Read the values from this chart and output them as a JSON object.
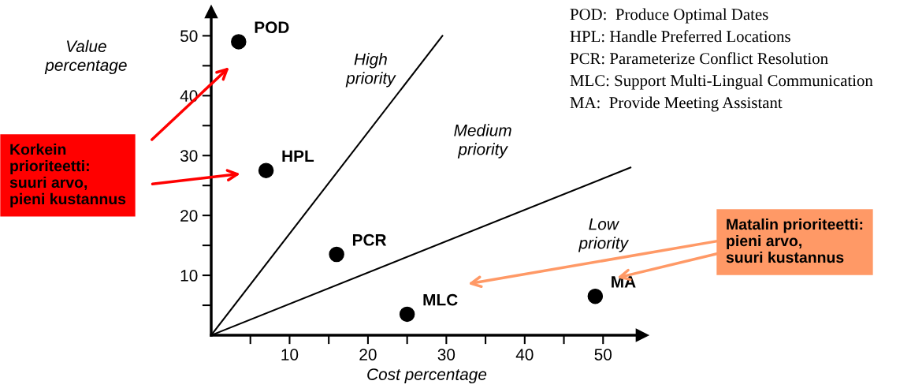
{
  "chart_data": {
    "type": "scatter",
    "xlabel": "Cost percentage",
    "ylabel": "Value percentage",
    "xlim": [
      0,
      55
    ],
    "ylim": [
      0,
      54
    ],
    "xticks": [
      {
        "value": 5,
        "label": null
      },
      10,
      {
        "value": 15,
        "label": null
      },
      20,
      {
        "value": 25,
        "label": null
      },
      30,
      {
        "value": 35,
        "label": null
      },
      40,
      {
        "value": 45,
        "label": null
      },
      50
    ],
    "yticks": [
      {
        "value": 5,
        "label": null
      },
      10,
      {
        "value": 15,
        "label": null
      },
      20,
      {
        "value": 25,
        "label": null
      },
      30,
      {
        "value": 35,
        "label": null
      },
      40,
      {
        "value": 45,
        "label": null
      },
      50
    ],
    "grid": false,
    "series": [
      {
        "marker": "circle",
        "color": "#000000",
        "x": [
          3.5,
          7,
          16,
          25,
          49
        ],
        "values": [
          49,
          27.5,
          13.5,
          3.5,
          6.5
        ]
      },
      {
        "type": "line",
        "color": "#000000",
        "x": [
          0,
          29.5
        ],
        "values": [
          0,
          50
        ]
      },
      {
        "type": "line",
        "color": "#000000",
        "x": [
          0,
          53.5
        ],
        "values": [
          0,
          28
        ]
      }
    ],
    "annotations": [
      {
        "text": "POD",
        "x": 3.5,
        "y": 49
      },
      {
        "text": "HPL",
        "x": 7,
        "y": 27.5
      },
      {
        "text": "PCR",
        "x": 16,
        "y": 13.5
      },
      {
        "text": "MLC",
        "x": 25,
        "y": 3.5
      },
      {
        "text": "MA",
        "x": 49,
        "y": 6.5
      },
      "High\npriority",
      "Medium\npriority",
      "Low\npriority",
      "POD:  Produce Optimal Dates",
      "HPL: Handle Preferred Locations",
      "PCR: Parameterize Conflict Resolution",
      "MLC: Support Multi-Lingual Communication",
      "MA:  Provide Meeting Assistant",
      "Korkein\nprioriteetti:\nsuuri arvo,\npieni kustannus",
      "Matalin prioriteetti:\npieni arvo,\nsuuri kustannus"
    ]
  }
}
